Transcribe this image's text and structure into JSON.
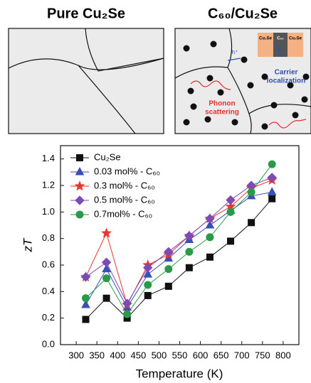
{
  "schematic": {
    "left_title": "Pure Cu₂Se",
    "right_title": "C₆₀/Cu₂Se",
    "inset_left": "Cu₂Se",
    "inset_mid": "C₆₀",
    "inset_right": "Cu₂Se",
    "hole_1": "h⁺",
    "hole_2": "h⁺",
    "carrier": [
      "Carrier",
      "localization"
    ],
    "phonon": [
      "Phonon",
      "scattering"
    ]
  },
  "chart_data": {
    "type": "line",
    "x_label": "Temperature (K)",
    "y_label": "zT",
    "x": [
      323,
      373,
      423,
      473,
      523,
      573,
      623,
      673,
      723,
      773
    ],
    "series": [
      {
        "name": "Cu₂Se",
        "color": "#111111",
        "marker": "square",
        "values": [
          0.19,
          0.35,
          0.2,
          0.37,
          0.44,
          0.58,
          0.66,
          0.78,
          0.92,
          1.1
        ]
      },
      {
        "name": "0.03 mol% - C₆₀",
        "color": "#3b4fb8",
        "marker": "triangle",
        "values": [
          0.3,
          0.57,
          0.28,
          0.53,
          0.65,
          0.79,
          0.9,
          1.01,
          1.12,
          1.15
        ]
      },
      {
        "name": "0.3 mol% - C₆₀",
        "color": "#e8382f",
        "marker": "star",
        "values": [
          0.51,
          0.84,
          0.3,
          0.6,
          0.68,
          0.82,
          0.95,
          1.04,
          1.18,
          1.24
        ]
      },
      {
        "name": "0.5 mol% - C₆₀",
        "color": "#7d4bb5",
        "marker": "diamond",
        "values": [
          0.51,
          0.62,
          0.31,
          0.58,
          0.7,
          0.82,
          0.95,
          1.09,
          1.2,
          1.26
        ]
      },
      {
        "name": "0.7mol% - C₆₀",
        "color": "#2a9a48",
        "marker": "circle",
        "values": [
          0.35,
          0.5,
          0.23,
          0.45,
          0.57,
          0.7,
          0.81,
          1.0,
          1.15,
          1.36
        ]
      }
    ],
    "xlim": [
      262,
      838
    ],
    "ylim": [
      0,
      1.5
    ],
    "xticks": [
      300,
      350,
      400,
      450,
      500,
      550,
      600,
      650,
      700,
      750,
      800
    ],
    "yticks": [
      {
        "value": 0,
        "label": "0.0"
      },
      {
        "value": 0.2,
        "label": "0.2"
      },
      {
        "value": 0.4,
        "label": "0.4"
      },
      {
        "value": 0.6,
        "label": "0.6"
      },
      {
        "value": 0.8,
        "label": "0.8"
      },
      {
        "value": 1.0,
        "label": "1.0"
      },
      {
        "value": 1.2,
        "label": "1.2"
      },
      {
        "value": 1.4,
        "label": "1.4"
      }
    ],
    "legend": "upper-left"
  }
}
